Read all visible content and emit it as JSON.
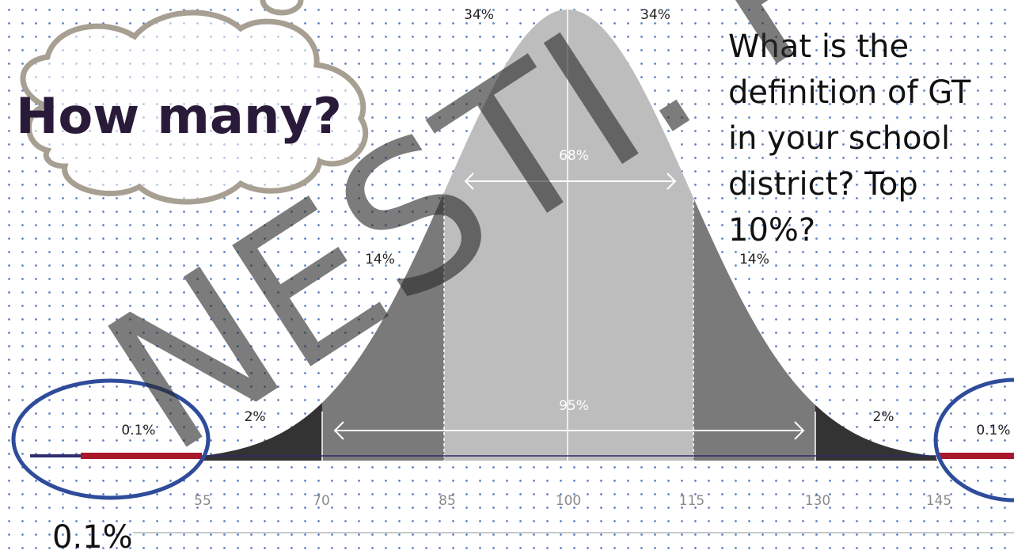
{
  "callout": {
    "text": "How many?"
  },
  "question": {
    "lines": [
      "What is the",
      "definition of GT",
      "in your school",
      "district? Top",
      "10%?"
    ]
  },
  "watermark": {
    "text": "NESTI. Pers"
  },
  "curve": {
    "top_labels": [
      "34%",
      "34%"
    ],
    "inner_range_label": "68%",
    "outer_range_label": "95%",
    "band_labels": [
      "14%",
      "14%"
    ],
    "tail_labels": [
      "2%",
      "2%"
    ],
    "extreme_labels": [
      "0.1%",
      "0.1%"
    ],
    "axis_ticks": [
      "55",
      "70",
      "85",
      "100",
      "115",
      "130",
      "145"
    ]
  },
  "footnote": {
    "text": "0.1%"
  },
  "colors": {
    "center_band": "#bdbdbd",
    "second_band": "#7a7a7a",
    "tail_band": "#333333",
    "extreme_line": "#a8182c",
    "circle_outline": "#2f4c9a",
    "cloud_outline": "#a89f93",
    "callout_text": "#2a1a3a"
  }
}
